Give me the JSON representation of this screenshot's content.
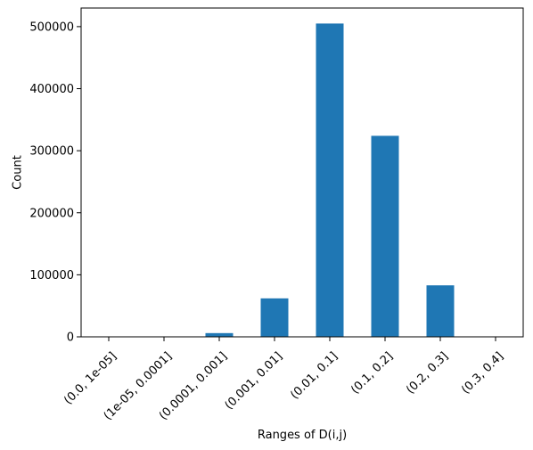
{
  "chart_data": {
    "type": "bar",
    "title": "",
    "xlabel": "Ranges of D(i,j)",
    "ylabel": "Count",
    "categories": [
      "(0.0, 1e-05]",
      "(1e-05, 0.0001]",
      "(0.0001, 0.001]",
      "(0.001, 0.01]",
      "(0.01, 0.1]",
      "(0.1, 0.2]",
      "(0.2, 0.3]",
      "(0.3, 0.4]"
    ],
    "values": [
      0,
      0,
      6000,
      62000,
      505000,
      324000,
      83000,
      500
    ],
    "ylim": [
      0,
      530000
    ],
    "yticks": [
      0,
      100000,
      200000,
      300000,
      400000,
      500000
    ],
    "ytick_labels": [
      "0",
      "100000",
      "200000",
      "300000",
      "400000",
      "500000"
    ],
    "bar_color": "#1f77b4",
    "grid": false,
    "legend": "none"
  }
}
